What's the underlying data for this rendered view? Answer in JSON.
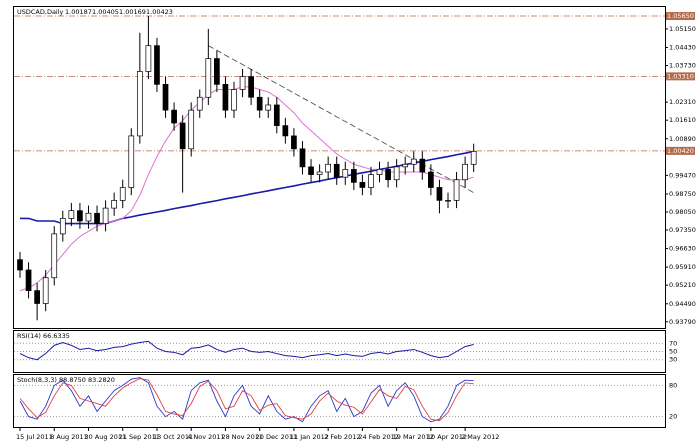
{
  "chart_data": {
    "type": "candlestick",
    "title": "USDCAD,Daily",
    "header_values": [
      1.00187,
      1.00405,
      1.00169,
      1.00423
    ],
    "categories": [
      "15 Jul 2011",
      null,
      null,
      null,
      "8 Aug 2011",
      null,
      null,
      null,
      "30 Aug 2011",
      null,
      null,
      null,
      "21 Sep 2011",
      null,
      null,
      null,
      "13 Oct 2011",
      null,
      null,
      null,
      "4 Nov 2011",
      null,
      null,
      null,
      "28 Nov 2011",
      null,
      null,
      null,
      "20 Dec 2011",
      null,
      null,
      null,
      "11 Jan 2012",
      null,
      null,
      null,
      "2 Feb 2012",
      null,
      null,
      null,
      "24 Feb 2012",
      null,
      null,
      null,
      "19 Mar 2012",
      null,
      null,
      null,
      "10 Apr 2012",
      null,
      null,
      null,
      "2 May 2012",
      null
    ],
    "open": [
      0.962,
      0.958,
      0.95,
      0.945,
      0.955,
      0.972,
      0.978,
      0.981,
      0.977,
      0.98,
      0.976,
      0.982,
      0.985,
      0.99,
      1.01,
      1.035,
      1.045,
      1.03,
      1.02,
      1.015,
      1.005,
      1.02,
      1.025,
      1.04,
      1.03,
      1.02,
      1.028,
      1.033,
      1.025,
      1.02,
      1.022,
      1.014,
      1.01,
      1.005,
      0.998,
      0.995,
      0.996,
      0.999,
      0.994,
      0.997,
      0.992,
      0.99,
      0.995,
      0.997,
      0.993,
      0.998,
      0.999,
      1.001,
      0.996,
      0.99,
      0.985,
      0.985,
      0.993,
      0.999
    ],
    "high": [
      0.965,
      0.961,
      0.953,
      0.958,
      0.975,
      0.981,
      0.984,
      0.984,
      0.983,
      0.983,
      0.985,
      0.988,
      0.993,
      1.013,
      1.05,
      1.0565,
      1.048,
      1.033,
      1.023,
      1.018,
      1.023,
      1.028,
      1.0515,
      1.043,
      1.033,
      1.031,
      1.036,
      1.036,
      1.028,
      1.025,
      1.025,
      1.017,
      1.013,
      1.008,
      1.001,
      0.999,
      1.002,
      1.002,
      1.0,
      1.0,
      0.995,
      0.998,
      1.0,
      1.0,
      1.001,
      1.002,
      1.004,
      1.004,
      0.999,
      0.993,
      0.988,
      0.996,
      1.002,
      1.007
    ],
    "low": [
      0.955,
      0.947,
      0.9385,
      0.942,
      0.952,
      0.969,
      0.975,
      0.974,
      0.974,
      0.973,
      0.973,
      0.979,
      0.982,
      0.987,
      1.007,
      1.032,
      1.027,
      1.017,
      1.012,
      0.988,
      1.002,
      1.017,
      1.022,
      1.027,
      1.017,
      1.017,
      1.025,
      1.022,
      1.017,
      1.017,
      1.011,
      1.007,
      1.002,
      0.995,
      0.992,
      0.992,
      0.993,
      0.991,
      0.991,
      0.989,
      0.987,
      0.987,
      0.992,
      0.99,
      0.99,
      0.995,
      0.996,
      0.993,
      0.987,
      0.98,
      0.982,
      0.982,
      0.99,
      0.996
    ],
    "close": [
      0.958,
      0.95,
      0.945,
      0.955,
      0.972,
      0.978,
      0.981,
      0.977,
      0.98,
      0.976,
      0.982,
      0.985,
      0.99,
      1.01,
      1.035,
      1.045,
      1.03,
      1.02,
      1.015,
      1.005,
      1.02,
      1.025,
      1.04,
      1.03,
      1.02,
      1.028,
      1.033,
      1.025,
      1.02,
      1.022,
      1.014,
      1.01,
      1.005,
      0.998,
      0.995,
      0.996,
      0.999,
      0.994,
      0.997,
      0.992,
      0.99,
      0.995,
      0.997,
      0.993,
      0.998,
      0.999,
      1.001,
      0.996,
      0.99,
      0.985,
      0.985,
      0.993,
      0.999,
      1.004
    ],
    "candle_colors": {
      "up": "#ffffff",
      "down": "#000000",
      "wick": "#000000"
    },
    "series": [
      {
        "color": "#1a1aa8",
        "values": [
          0.978,
          0.978,
          0.977,
          0.977,
          0.977,
          0.976,
          0.976,
          0.976,
          0.976,
          0.976,
          0.976,
          0.977,
          0.978,
          0.9786,
          0.9793,
          0.9799,
          0.9805,
          0.9811,
          0.9818,
          0.9824,
          0.983,
          0.9837,
          0.9843,
          0.9849,
          0.9856,
          0.9862,
          0.9868,
          0.9875,
          0.9881,
          0.9887,
          0.9894,
          0.99,
          0.9906,
          0.9913,
          0.9919,
          0.9925,
          0.9932,
          0.9938,
          0.9944,
          0.9951,
          0.9957,
          0.9963,
          0.997,
          0.9976,
          0.9982,
          0.9989,
          0.9995,
          1.0001,
          1.0008,
          1.0014,
          1.002,
          1.0027,
          1.0033,
          1.004
        ]
      },
      {
        "color": "#e070d0",
        "values": [
          0.95,
          0.951,
          0.953,
          0.956,
          0.96,
          0.964,
          0.968,
          0.971,
          0.973,
          0.975,
          0.976,
          0.977,
          0.978,
          0.981,
          0.987,
          0.995,
          1.002,
          1.008,
          1.013,
          1.016,
          1.02,
          1.023,
          1.026,
          1.028,
          1.028,
          1.028,
          1.029,
          1.029,
          1.028,
          1.027,
          1.025,
          1.022,
          1.019,
          1.015,
          1.012,
          1.009,
          1.006,
          1.003,
          1.001,
          0.999,
          0.998,
          0.997,
          0.997,
          0.996,
          0.996,
          0.996,
          0.996,
          0.996,
          0.995,
          0.994,
          0.993,
          0.993,
          0.993,
          0.994
        ]
      }
    ],
    "trendline": {
      "color": "#555555",
      "values": [
        null,
        null,
        null,
        null,
        null,
        null,
        null,
        null,
        null,
        null,
        null,
        null,
        null,
        null,
        null,
        null,
        null,
        null,
        null,
        null,
        null,
        null,
        1.045,
        1.0432,
        1.0413,
        1.0395,
        1.0377,
        1.0358,
        1.034,
        1.0321,
        1.0303,
        1.0285,
        1.0266,
        1.0248,
        1.023,
        1.0211,
        1.0193,
        1.0174,
        1.0156,
        1.0138,
        1.0119,
        1.0101,
        1.0083,
        1.0064,
        1.0046,
        1.0027,
        1.0009,
        0.9991,
        0.9972,
        0.9954,
        0.9936,
        0.9917,
        0.9899,
        0.988
      ]
    },
    "ylim": [
      0.9355,
      1.06
    ],
    "yticks": [
      {
        "value": 0.9379,
        "label": "0.93790"
      },
      {
        "value": 0.9449,
        "label": "0.94490"
      },
      {
        "value": 0.9521,
        "label": "0.95210"
      },
      {
        "value": 0.9591,
        "label": "0.95910"
      },
      {
        "value": 0.9663,
        "label": "0.96630"
      },
      {
        "value": 0.9735,
        "label": "0.97350"
      },
      {
        "value": 0.9805,
        "label": "0.98050"
      },
      {
        "value": 0.9875,
        "label": "0.98750"
      },
      {
        "value": 0.9947,
        "label": "0.99470"
      },
      {
        "value": 1.0089,
        "label": "1.00890"
      },
      {
        "value": 1.0161,
        "label": "1.01610"
      },
      {
        "value": 1.0231,
        "label": "1.02310"
      },
      {
        "value": 1.0373,
        "label": "1.03730"
      },
      {
        "value": 1.0443,
        "label": "1.04430"
      },
      {
        "value": 1.0515,
        "label": "1.05150"
      }
    ],
    "levels": [
      {
        "value": 1.0565,
        "label": "1.05650"
      },
      {
        "value": 1.0331,
        "label": "1.03310"
      },
      {
        "value": 1.0042,
        "label": "1.00420"
      }
    ],
    "level_color": "#b46a4a",
    "rsi": {
      "title": "RSI(14) 66.6335",
      "color": "#1a1aa8",
      "ylim": [
        0,
        100
      ],
      "yticks": [
        30,
        50,
        70
      ],
      "values": [
        45,
        35,
        30,
        45,
        65,
        72,
        65,
        55,
        58,
        52,
        55,
        60,
        62,
        68,
        72,
        75,
        58,
        50,
        48,
        42,
        58,
        60,
        66,
        55,
        48,
        55,
        58,
        50,
        48,
        50,
        45,
        40,
        38,
        35,
        40,
        42,
        45,
        40,
        44,
        40,
        38,
        45,
        48,
        44,
        50,
        52,
        55,
        48,
        40,
        35,
        38,
        50,
        62,
        67
      ]
    },
    "stoch": {
      "title": "Stoch(8,3,3) 88.8750 83.2820",
      "ylim": [
        0,
        100
      ],
      "yticks": [
        20,
        80
      ],
      "series": [
        {
          "color": "#2a3ac8",
          "values": [
            50,
            20,
            15,
            40,
            80,
            90,
            70,
            40,
            60,
            30,
            50,
            70,
            80,
            92,
            95,
            85,
            40,
            20,
            30,
            15,
            70,
            85,
            90,
            50,
            20,
            60,
            80,
            40,
            25,
            60,
            30,
            15,
            20,
            10,
            40,
            60,
            70,
            30,
            55,
            20,
            30,
            65,
            80,
            40,
            70,
            85,
            60,
            20,
            10,
            15,
            40,
            80,
            90,
            89
          ]
        },
        {
          "color": "#e04040",
          "values": [
            55,
            35,
            18,
            28,
            60,
            85,
            80,
            55,
            50,
            45,
            40,
            60,
            75,
            85,
            93,
            90,
            62,
            30,
            25,
            22,
            45,
            78,
            88,
            70,
            35,
            40,
            70,
            60,
            32,
            42,
            45,
            22,
            18,
            15,
            25,
            50,
            65,
            50,
            42,
            38,
            25,
            48,
            72,
            60,
            55,
            78,
            72,
            40,
            15,
            12,
            28,
            60,
            85,
            83
          ]
        }
      ]
    }
  }
}
